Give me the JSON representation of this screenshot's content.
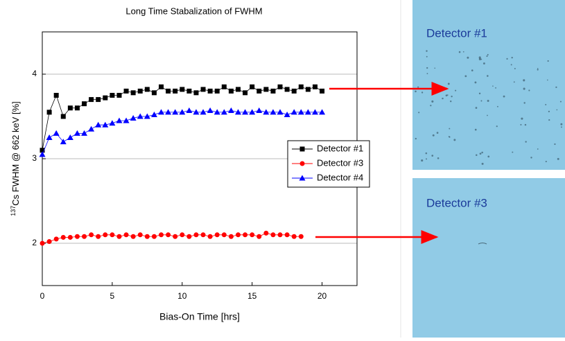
{
  "chart_data": {
    "type": "line",
    "title": "Long Time Stabalization of FWHM",
    "x_label": "Bias-On Time [hrs]",
    "y_label_superscript": "137",
    "y_label": "Cs FWHM @ 662 keV [%]",
    "xlim": [
      0,
      22.5
    ],
    "xticks": [
      0,
      5,
      10,
      15,
      20
    ],
    "ylim": [
      1.5,
      4.5
    ],
    "yticks": [
      2,
      3,
      4
    ],
    "grid": true,
    "legend_position": "center-right",
    "series": [
      {
        "name": "Detector #1",
        "color": "#000000",
        "marker": "square",
        "x": [
          0,
          0.5,
          1,
          1.5,
          2,
          2.5,
          3,
          3.5,
          4,
          4.5,
          5,
          5.5,
          6,
          6.5,
          7,
          7.5,
          8,
          8.5,
          9,
          9.5,
          10,
          10.5,
          11,
          11.5,
          12,
          12.5,
          13,
          13.5,
          14,
          14.5,
          15,
          15.5,
          16,
          16.5,
          17,
          17.5,
          18,
          18.5,
          19,
          19.5,
          20
        ],
        "values": [
          3.1,
          3.55,
          3.75,
          3.5,
          3.6,
          3.6,
          3.65,
          3.7,
          3.7,
          3.72,
          3.75,
          3.75,
          3.8,
          3.78,
          3.8,
          3.82,
          3.78,
          3.85,
          3.8,
          3.8,
          3.82,
          3.8,
          3.78,
          3.82,
          3.8,
          3.8,
          3.85,
          3.8,
          3.82,
          3.78,
          3.85,
          3.8,
          3.82,
          3.8,
          3.85,
          3.82,
          3.8,
          3.85,
          3.82,
          3.85,
          3.8
        ]
      },
      {
        "name": "Detector #3",
        "color": "#ff0000",
        "marker": "circle",
        "x": [
          0,
          0.5,
          1,
          1.5,
          2,
          2.5,
          3,
          3.5,
          4,
          4.5,
          5,
          5.5,
          6,
          6.5,
          7,
          7.5,
          8,
          8.5,
          9,
          9.5,
          10,
          10.5,
          11,
          11.5,
          12,
          12.5,
          13,
          13.5,
          14,
          14.5,
          15,
          15.5,
          16,
          16.5,
          17,
          17.5,
          18,
          18.5
        ],
        "values": [
          2.0,
          2.02,
          2.05,
          2.07,
          2.07,
          2.08,
          2.08,
          2.1,
          2.08,
          2.1,
          2.1,
          2.08,
          2.1,
          2.08,
          2.1,
          2.08,
          2.08,
          2.1,
          2.1,
          2.08,
          2.1,
          2.08,
          2.1,
          2.1,
          2.08,
          2.1,
          2.1,
          2.08,
          2.1,
          2.1,
          2.1,
          2.08,
          2.12,
          2.1,
          2.1,
          2.1,
          2.08,
          2.08
        ]
      },
      {
        "name": "Detector #4",
        "color": "#0000ff",
        "marker": "triangle",
        "x": [
          0,
          0.5,
          1,
          1.5,
          2,
          2.5,
          3,
          3.5,
          4,
          4.5,
          5,
          5.5,
          6,
          6.5,
          7,
          7.5,
          8,
          8.5,
          9,
          9.5,
          10,
          10.5,
          11,
          11.5,
          12,
          12.5,
          13,
          13.5,
          14,
          14.5,
          15,
          15.5,
          16,
          16.5,
          17,
          17.5,
          18,
          18.5,
          19,
          19.5,
          20
        ],
        "values": [
          3.05,
          3.25,
          3.3,
          3.2,
          3.25,
          3.3,
          3.3,
          3.35,
          3.4,
          3.4,
          3.42,
          3.45,
          3.45,
          3.48,
          3.5,
          3.5,
          3.52,
          3.55,
          3.55,
          3.55,
          3.55,
          3.57,
          3.55,
          3.55,
          3.57,
          3.55,
          3.55,
          3.57,
          3.55,
          3.55,
          3.55,
          3.57,
          3.55,
          3.55,
          3.55,
          3.52,
          3.55,
          3.55,
          3.55,
          3.55,
          3.55
        ]
      }
    ]
  },
  "images": [
    {
      "label": "Detector #1"
    },
    {
      "label": "Detector #3"
    }
  ]
}
